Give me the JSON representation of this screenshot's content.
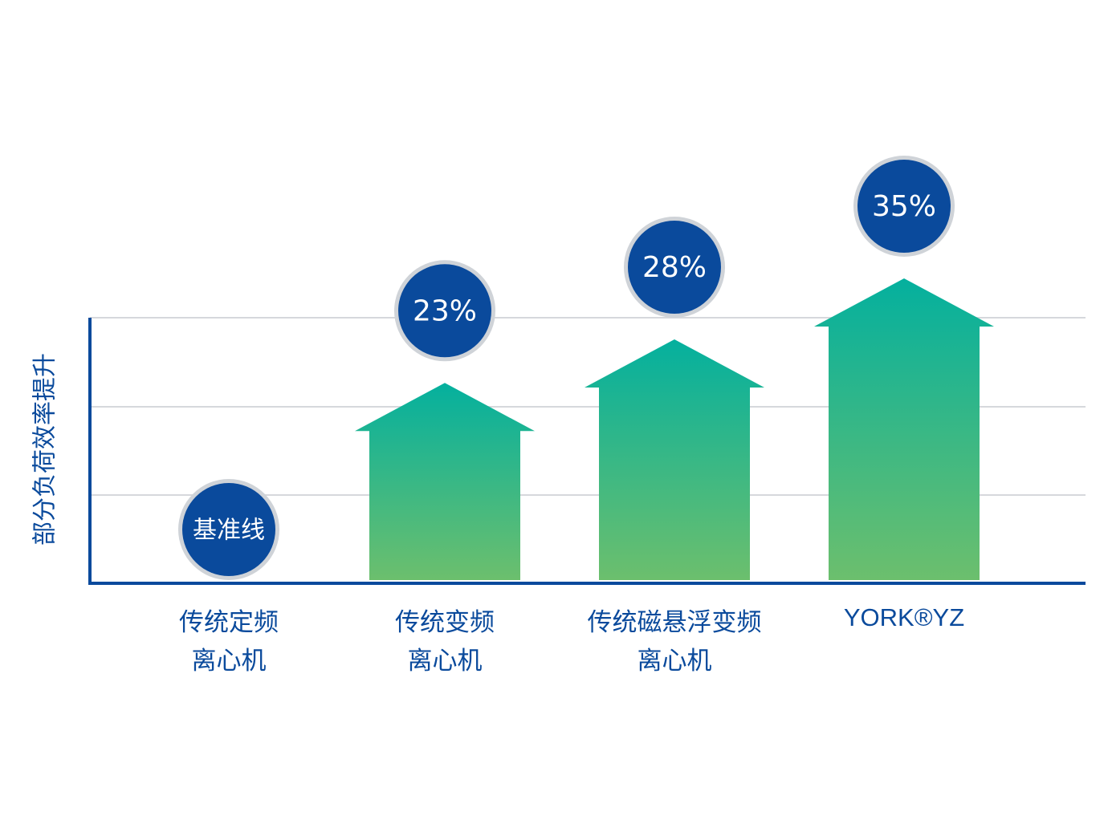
{
  "chart_data": {
    "type": "bar",
    "title": "",
    "ylabel": "部分负荷效率提升",
    "xlabel": "",
    "ylim": [
      0,
      45
    ],
    "grid": true,
    "categories": [
      {
        "lines": [
          "传统定频",
          "离心机"
        ]
      },
      {
        "lines": [
          "传统变频",
          "离心机"
        ]
      },
      {
        "lines": [
          "传统磁悬浮变频",
          "离心机"
        ]
      },
      {
        "lines": [
          "YORK®YZ"
        ]
      }
    ],
    "values": [
      0,
      23,
      28,
      35
    ],
    "data_labels": [
      "基准线",
      "23%",
      "28%",
      "35%"
    ]
  },
  "colors": {
    "axis": "#0a4a9c",
    "badge_fill": "#0a4a9c",
    "badge_ring": "#cfd3d8",
    "bar_top": "#04b09e",
    "bar_bottom": "#6cbf6d",
    "grid": "#d6d8dc",
    "label_text": "#0a4a9c"
  }
}
